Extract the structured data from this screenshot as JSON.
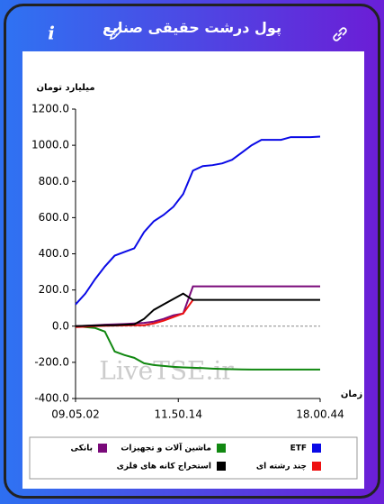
{
  "header": {
    "title": "پول درشت حقیقی صنایع"
  },
  "chart_data": {
    "type": "line",
    "ylabel": "میلیارد تومان",
    "xlabel": "زمان",
    "watermark": "LiveTSE.ir",
    "x": [
      0,
      4,
      8,
      12,
      16,
      20,
      24,
      28,
      32,
      36,
      40,
      44,
      48,
      52,
      56,
      60,
      64,
      68,
      72,
      76,
      80,
      84,
      88,
      92,
      96,
      100
    ],
    "xlim": [
      0,
      100
    ],
    "xticks": [
      {
        "value": 0,
        "label": "09.05.02"
      },
      {
        "value": 42,
        "label": "11.50.14"
      },
      {
        "value": 100,
        "label": "18.00.44"
      }
    ],
    "ylim": [
      -400,
      1200
    ],
    "yticks": [
      {
        "value": -400,
        "label": "-400.0"
      },
      {
        "value": -200,
        "label": "-200.0"
      },
      {
        "value": 0,
        "label": "0.0"
      },
      {
        "value": 200,
        "label": "200.0"
      },
      {
        "value": 400,
        "label": "400.0"
      },
      {
        "value": 600,
        "label": "600.0"
      },
      {
        "value": 800,
        "label": "800.0"
      },
      {
        "value": 1000,
        "label": "1000.0"
      },
      {
        "value": 1200,
        "label": "1200.0"
      }
    ],
    "series": [
      {
        "name": "ETF",
        "color": "#0a0ae6",
        "values": [
          120,
          180,
          260,
          330,
          390,
          410,
          430,
          520,
          580,
          615,
          660,
          730,
          860,
          885,
          890,
          900,
          920,
          960,
          1000,
          1030,
          1030,
          1030,
          1045,
          1045,
          1045,
          1048
        ]
      },
      {
        "name": "ماشین آلات و تجهیزات",
        "color": "#118811",
        "values": [
          0,
          -5,
          -10,
          -30,
          -140,
          -160,
          -175,
          -205,
          -215,
          -220,
          -225,
          -228,
          -230,
          -232,
          -235,
          -237,
          -238,
          -239,
          -240,
          -240,
          -240,
          -240,
          -240,
          -240,
          -240,
          -240
        ]
      },
      {
        "name": "بانکی",
        "color": "#7a0a7a",
        "values": [
          0,
          2,
          5,
          8,
          10,
          12,
          15,
          18,
          25,
          40,
          60,
          70,
          220,
          220,
          220,
          220,
          220,
          220,
          220,
          220,
          220,
          220,
          220,
          220,
          220,
          220
        ]
      },
      {
        "name": "چند رشته ای",
        "color": "#ee1111",
        "values": [
          -5,
          -3,
          0,
          2,
          3,
          4,
          5,
          5,
          15,
          30,
          50,
          70,
          145,
          null,
          null,
          null,
          null,
          null,
          null,
          null,
          null,
          null,
          null,
          null,
          null,
          null
        ]
      },
      {
        "name": "استخراج کانه های فلزی",
        "color": "#000000",
        "values": [
          0,
          2,
          3,
          5,
          5,
          8,
          10,
          40,
          90,
          120,
          150,
          180,
          145,
          145,
          145,
          145,
          145,
          145,
          145,
          145,
          145,
          145,
          145,
          145,
          145,
          145
        ]
      }
    ]
  }
}
